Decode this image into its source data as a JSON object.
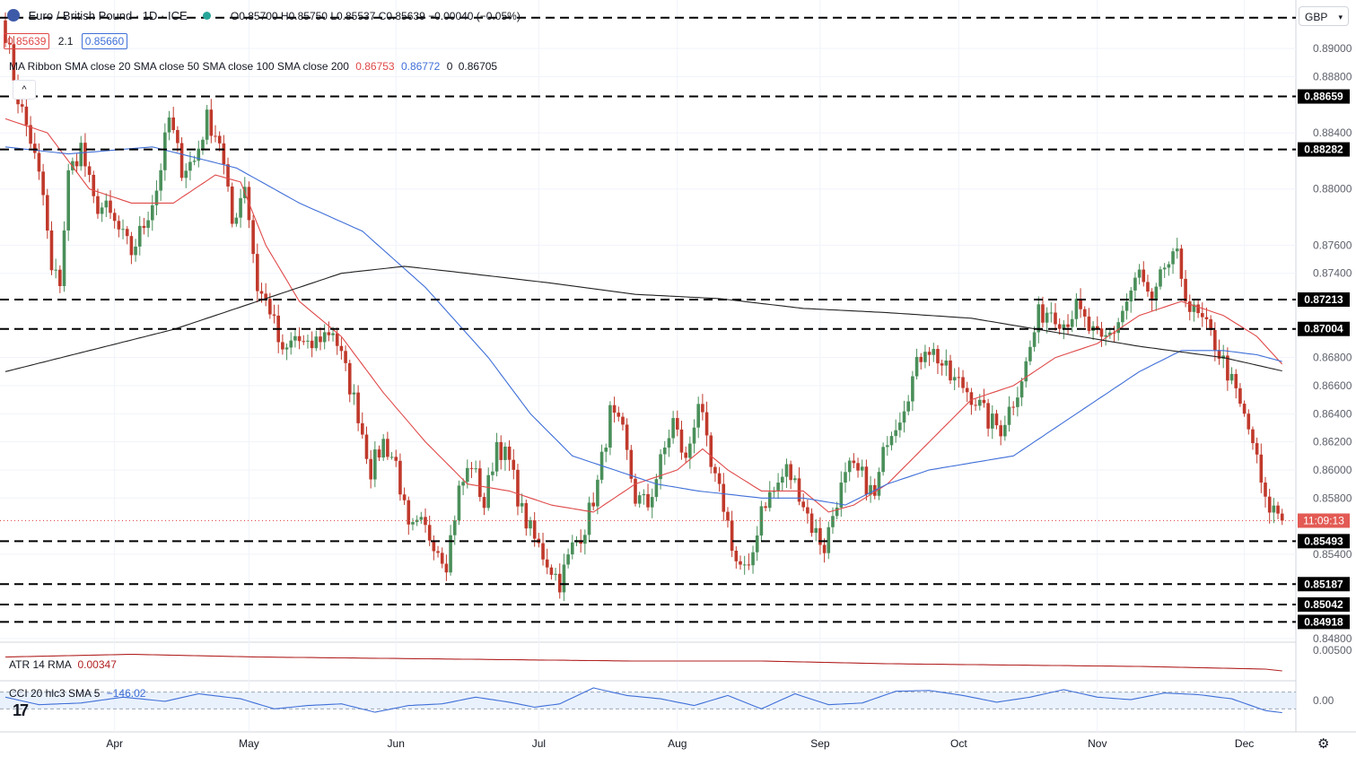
{
  "header": {
    "title": "Euro / British Pound · 1D · ICE",
    "ohlc": "O0.85700 H0.85750 L0.85537 C0.85639 −0.00040 (−0.05%)",
    "bid": "0.85639",
    "spread": "2.1",
    "ask": "0.85660",
    "currency": "GBP"
  },
  "legends": {
    "ma_label": "MA Ribbon SMA close 20 SMA close 50 SMA close 100 SMA close 200",
    "ma_v1": "0.86753",
    "ma_v2": "0.86772",
    "ma_v3": "0.86705",
    "atr_label": "ATR 14 RMA",
    "atr_value": "0.00347",
    "cci_label": "CCI 20 hlc3 SMA 5",
    "cci_value": "−146.02"
  },
  "colors": {
    "up": "#26a69a",
    "up_body": "#4a8f5a",
    "down": "#c0392b",
    "ma20": "#e04848",
    "ma50": "#3f6fd8",
    "ma200": "#222222",
    "atr": "#b22222",
    "cci": "#3f6fd8"
  },
  "chart_data": {
    "type": "candlestick",
    "y_axis_ticks": [
      "0.89000",
      "0.88800",
      "0.88400",
      "0.88000",
      "0.87600",
      "0.87400",
      "0.86800",
      "0.86600",
      "0.86400",
      "0.86200",
      "0.86000",
      "0.85800",
      "0.85400",
      "0.84800"
    ],
    "x_axis_ticks": [
      "Apr",
      "May",
      "Jun",
      "Jul",
      "Aug",
      "Sep",
      "Oct",
      "Nov",
      "Dec"
    ],
    "ylim": [
      0.8478,
      0.8925
    ],
    "horizontal_levels": [
      {
        "value": 0.88659,
        "label": "0.88659"
      },
      {
        "value": 0.88282,
        "label": "0.88282"
      },
      {
        "value": 0.87213,
        "label": "0.87213"
      },
      {
        "value": 0.87004,
        "label": "0.87004"
      },
      {
        "value": 0.85493,
        "label": "0.85493"
      },
      {
        "value": 0.85187,
        "label": "0.85187"
      },
      {
        "value": 0.85042,
        "label": "0.85042"
      },
      {
        "value": 0.84918,
        "label": "0.84918"
      }
    ],
    "top_level": {
      "value": 0.8922
    },
    "current_price": {
      "value": 0.85639,
      "label": "11:09:13"
    },
    "anchors": [
      [
        0,
        0.8912
      ],
      [
        3,
        0.8865
      ],
      [
        6,
        0.8835
      ],
      [
        9,
        0.8795
      ],
      [
        11,
        0.874
      ],
      [
        13,
        0.8735
      ],
      [
        15,
        0.881
      ],
      [
        18,
        0.883
      ],
      [
        21,
        0.879
      ],
      [
        24,
        0.8785
      ],
      [
        27,
        0.877
      ],
      [
        30,
        0.8755
      ],
      [
        33,
        0.8775
      ],
      [
        36,
        0.88
      ],
      [
        39,
        0.885
      ],
      [
        42,
        0.8815
      ],
      [
        45,
        0.882
      ],
      [
        48,
        0.885
      ],
      [
        51,
        0.8835
      ],
      [
        54,
        0.8775
      ],
      [
        57,
        0.8805
      ],
      [
        60,
        0.873
      ],
      [
        63,
        0.8715
      ],
      [
        66,
        0.868
      ],
      [
        69,
        0.8695
      ],
      [
        72,
        0.8685
      ],
      [
        75,
        0.8695
      ],
      [
        78,
        0.87
      ],
      [
        81,
        0.867
      ],
      [
        84,
        0.864
      ],
      [
        87,
        0.86
      ],
      [
        90,
        0.862
      ],
      [
        93,
        0.8605
      ],
      [
        96,
        0.8555
      ],
      [
        99,
        0.856
      ],
      [
        102,
        0.855
      ],
      [
        105,
        0.8535
      ],
      [
        108,
        0.8585
      ],
      [
        111,
        0.8605
      ],
      [
        114,
        0.8575
      ],
      [
        117,
        0.862
      ],
      [
        120,
        0.8605
      ],
      [
        123,
        0.857
      ],
      [
        126,
        0.855
      ],
      [
        129,
        0.8535
      ],
      [
        132,
        0.852
      ],
      [
        135,
        0.8545
      ],
      [
        138,
        0.856
      ],
      [
        141,
        0.859
      ],
      [
        144,
        0.864
      ],
      [
        147,
        0.8625
      ],
      [
        150,
        0.858
      ],
      [
        153,
        0.8575
      ],
      [
        156,
        0.8605
      ],
      [
        159,
        0.8635
      ],
      [
        162,
        0.8605
      ],
      [
        165,
        0.865
      ],
      [
        168,
        0.86
      ],
      [
        171,
        0.8575
      ],
      [
        174,
        0.8535
      ],
      [
        177,
        0.8525
      ],
      [
        180,
        0.8575
      ],
      [
        183,
        0.8585
      ],
      [
        186,
        0.86
      ],
      [
        189,
        0.8585
      ],
      [
        192,
        0.856
      ],
      [
        195,
        0.8545
      ],
      [
        198,
        0.858
      ],
      [
        201,
        0.86
      ],
      [
        204,
        0.8595
      ],
      [
        207,
        0.858
      ],
      [
        210,
        0.8625
      ],
      [
        213,
        0.864
      ],
      [
        216,
        0.8665
      ],
      [
        219,
        0.869
      ],
      [
        222,
        0.868
      ],
      [
        225,
        0.8665
      ],
      [
        228,
        0.866
      ],
      [
        231,
        0.865
      ],
      [
        234,
        0.8635
      ],
      [
        237,
        0.863
      ],
      [
        240,
        0.865
      ],
      [
        243,
        0.8675
      ],
      [
        246,
        0.871
      ],
      [
        249,
        0.8715
      ],
      [
        252,
        0.8705
      ],
      [
        255,
        0.8715
      ],
      [
        258,
        0.87
      ],
      [
        261,
        0.869
      ],
      [
        264,
        0.87
      ],
      [
        267,
        0.872
      ],
      [
        270,
        0.874
      ],
      [
        273,
        0.8715
      ],
      [
        276,
        0.8745
      ],
      [
        279,
        0.875
      ],
      [
        282,
        0.8715
      ],
      [
        285,
        0.8705
      ],
      [
        288,
        0.869
      ],
      [
        291,
        0.867
      ],
      [
        294,
        0.8645
      ],
      [
        297,
        0.862
      ],
      [
        300,
        0.8575
      ],
      [
        303,
        0.857
      ],
      [
        304,
        0.8564
      ]
    ],
    "ma20_anchors": [
      [
        0,
        0.885
      ],
      [
        10,
        0.884
      ],
      [
        20,
        0.88
      ],
      [
        30,
        0.879
      ],
      [
        40,
        0.879
      ],
      [
        50,
        0.881
      ],
      [
        56,
        0.8805
      ],
      [
        62,
        0.876
      ],
      [
        70,
        0.872
      ],
      [
        80,
        0.8695
      ],
      [
        90,
        0.8655
      ],
      [
        100,
        0.862
      ],
      [
        110,
        0.859
      ],
      [
        120,
        0.8585
      ],
      [
        130,
        0.8575
      ],
      [
        140,
        0.857
      ],
      [
        150,
        0.859
      ],
      [
        160,
        0.86
      ],
      [
        166,
        0.8615
      ],
      [
        172,
        0.86
      ],
      [
        180,
        0.8585
      ],
      [
        190,
        0.8585
      ],
      [
        196,
        0.857
      ],
      [
        202,
        0.8575
      ],
      [
        210,
        0.859
      ],
      [
        220,
        0.862
      ],
      [
        230,
        0.865
      ],
      [
        240,
        0.866
      ],
      [
        250,
        0.868
      ],
      [
        260,
        0.869
      ],
      [
        270,
        0.871
      ],
      [
        280,
        0.872
      ],
      [
        290,
        0.871
      ],
      [
        298,
        0.8695
      ],
      [
        304,
        0.86753
      ]
    ],
    "ma50_anchors": [
      [
        0,
        0.883
      ],
      [
        15,
        0.8825
      ],
      [
        35,
        0.883
      ],
      [
        55,
        0.8815
      ],
      [
        70,
        0.879
      ],
      [
        85,
        0.877
      ],
      [
        100,
        0.873
      ],
      [
        115,
        0.868
      ],
      [
        125,
        0.864
      ],
      [
        135,
        0.861
      ],
      [
        145,
        0.86
      ],
      [
        155,
        0.859
      ],
      [
        165,
        0.8585
      ],
      [
        180,
        0.858
      ],
      [
        190,
        0.858
      ],
      [
        200,
        0.8575
      ],
      [
        210,
        0.859
      ],
      [
        220,
        0.86
      ],
      [
        230,
        0.8605
      ],
      [
        240,
        0.861
      ],
      [
        250,
        0.863
      ],
      [
        260,
        0.865
      ],
      [
        270,
        0.867
      ],
      [
        280,
        0.8685
      ],
      [
        290,
        0.8685
      ],
      [
        298,
        0.8682
      ],
      [
        304,
        0.86772
      ]
    ],
    "ma200_anchors": [
      [
        0,
        0.867
      ],
      [
        20,
        0.8685
      ],
      [
        40,
        0.87
      ],
      [
        60,
        0.872
      ],
      [
        80,
        0.874
      ],
      [
        95,
        0.8745
      ],
      [
        110,
        0.874
      ],
      [
        130,
        0.8733
      ],
      [
        150,
        0.8725
      ],
      [
        170,
        0.8722
      ],
      [
        190,
        0.8715
      ],
      [
        210,
        0.8712
      ],
      [
        230,
        0.8708
      ],
      [
        250,
        0.8698
      ],
      [
        270,
        0.8688
      ],
      [
        290,
        0.868
      ],
      [
        304,
        0.86705
      ]
    ],
    "atr_anchors": [
      [
        0,
        0.0045
      ],
      [
        30,
        0.0047
      ],
      [
        60,
        0.0045
      ],
      [
        90,
        0.0044
      ],
      [
        120,
        0.0043
      ],
      [
        150,
        0.0042
      ],
      [
        180,
        0.0042
      ],
      [
        210,
        0.004
      ],
      [
        240,
        0.0039
      ],
      [
        270,
        0.0038
      ],
      [
        300,
        0.0036
      ],
      [
        304,
        0.00347
      ]
    ],
    "cci_anchors": [
      [
        0,
        40
      ],
      [
        8,
        -50
      ],
      [
        18,
        -30
      ],
      [
        28,
        40
      ],
      [
        38,
        -10
      ],
      [
        46,
        80
      ],
      [
        56,
        20
      ],
      [
        64,
        -100
      ],
      [
        72,
        -60
      ],
      [
        80,
        -40
      ],
      [
        88,
        -140
      ],
      [
        96,
        -60
      ],
      [
        104,
        -40
      ],
      [
        112,
        40
      ],
      [
        120,
        -20
      ],
      [
        126,
        -80
      ],
      [
        132,
        -40
      ],
      [
        140,
        150
      ],
      [
        148,
        60
      ],
      [
        156,
        20
      ],
      [
        164,
        -60
      ],
      [
        172,
        60
      ],
      [
        180,
        -100
      ],
      [
        188,
        80
      ],
      [
        196,
        -50
      ],
      [
        204,
        -30
      ],
      [
        212,
        110
      ],
      [
        220,
        120
      ],
      [
        228,
        60
      ],
      [
        236,
        -20
      ],
      [
        244,
        40
      ],
      [
        252,
        130
      ],
      [
        260,
        40
      ],
      [
        268,
        10
      ],
      [
        276,
        90
      ],
      [
        284,
        70
      ],
      [
        292,
        20
      ],
      [
        300,
        -120
      ],
      [
        304,
        -146
      ]
    ],
    "atr_ticks": [
      "0.00500"
    ],
    "cci_ticks": [
      "0.00"
    ]
  }
}
